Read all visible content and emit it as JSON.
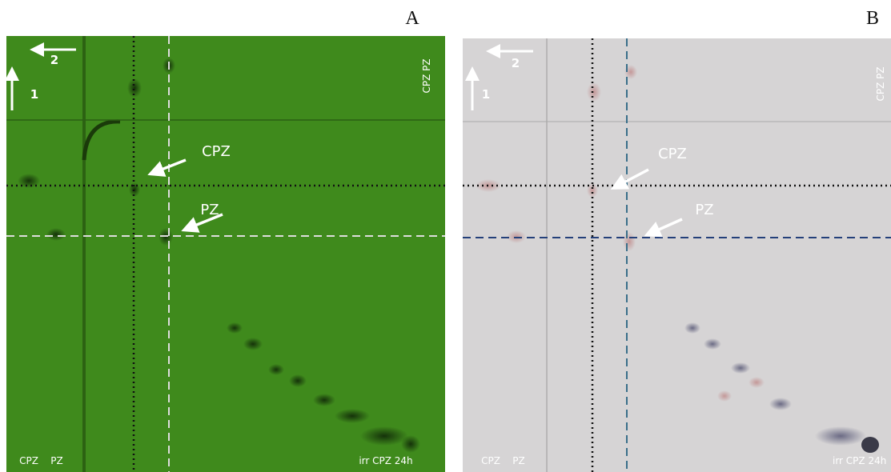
{
  "figure": {
    "panels": [
      {
        "label": "A",
        "direction_1": "1",
        "direction_2": "2",
        "standards_top": "CPZ PZ",
        "callouts": [
          "CPZ",
          "PZ"
        ],
        "lanes": [
          "CPZ",
          "PZ"
        ],
        "sample": "irr CPZ 24h"
      },
      {
        "label": "B",
        "direction_1": "1",
        "direction_2": "2",
        "standards_top": "CPZ PZ",
        "callouts": [
          "CPZ",
          "PZ"
        ],
        "lanes": [
          "CPZ",
          "PZ"
        ],
        "sample": "irr CPZ 24h"
      }
    ]
  }
}
